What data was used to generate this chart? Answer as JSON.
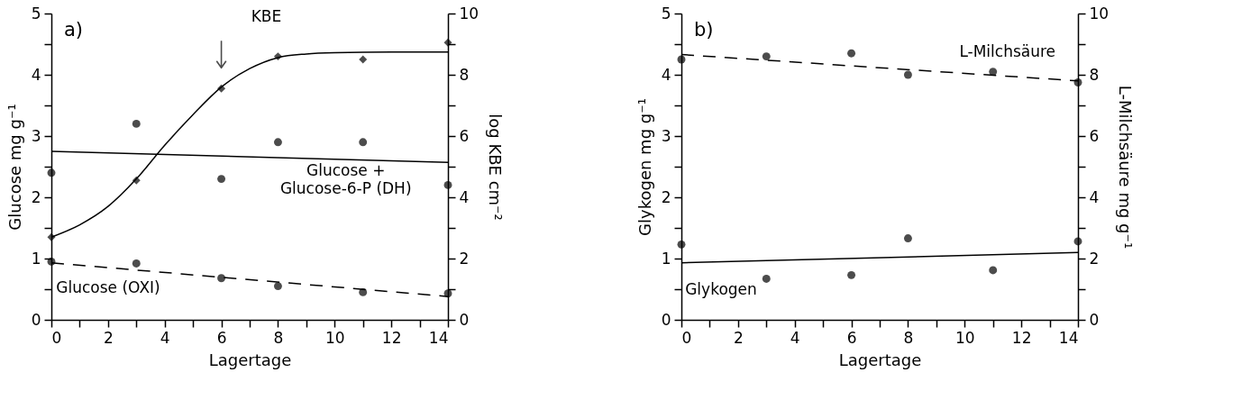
{
  "chart_data": [
    {
      "type": "scatter",
      "title": "a)",
      "xlabel": "Lagertage",
      "ylabel": "Glucose  mg  g⁻¹",
      "y2label": "log KBE  cm⁻²",
      "x": [
        0,
        3,
        6,
        8,
        11,
        14
      ],
      "xlim": [
        0,
        14
      ],
      "xticks": [
        0,
        {
          "value": 1,
          "label": null
        },
        2,
        {
          "value": 3,
          "label": null
        },
        4,
        {
          "value": 5,
          "label": null
        },
        6,
        {
          "value": 7,
          "label": null
        },
        8,
        {
          "value": 9,
          "label": null
        },
        10,
        {
          "value": 11,
          "label": null
        },
        12,
        {
          "value": 13,
          "label": null
        },
        14
      ],
      "ylim": [
        0,
        5
      ],
      "yticks": [
        0,
        {
          "value": 0.5,
          "label": null
        },
        1,
        {
          "value": 1.5,
          "label": null
        },
        2,
        {
          "value": 2.5,
          "label": null
        },
        3,
        {
          "value": 3.5,
          "label": null
        },
        4,
        {
          "value": 4.5,
          "label": null
        },
        5
      ],
      "y2lim": [
        0,
        10
      ],
      "y2ticks": [
        0,
        {
          "value": 1,
          "label": null
        },
        2,
        {
          "value": 3,
          "label": null
        },
        4,
        {
          "value": 5,
          "label": null
        },
        6,
        {
          "value": 7,
          "label": null
        },
        8,
        {
          "value": 9,
          "label": null
        },
        10
      ],
      "series": [
        {
          "type": "scatter",
          "axis": "y2",
          "name": "KBE",
          "marker": "diamond",
          "color": "#000000",
          "values": [
            2.7,
            4.55,
            7.55,
            8.6,
            8.5,
            9.05
          ]
        },
        {
          "type": "line",
          "axis": "y2",
          "marker": "none",
          "line_style": "solid",
          "color": "#000000",
          "x": [
            0,
            1,
            2,
            3,
            4,
            5,
            6,
            7,
            8,
            9,
            10,
            12,
            14
          ],
          "values": [
            2.7,
            3.1,
            3.7,
            4.6,
            5.7,
            6.7,
            7.6,
            8.2,
            8.56,
            8.68,
            8.72,
            8.74,
            8.74
          ]
        },
        {
          "type": "scatter",
          "name": "Glucose + Glucose-6-P (DH)",
          "marker": "circle",
          "color": "#000000",
          "values": [
            2.4,
            3.2,
            2.3,
            2.9,
            2.9,
            2.2
          ]
        },
        {
          "type": "line",
          "marker": "none",
          "line_style": "solid",
          "color": "#000000",
          "x": [
            0,
            14
          ],
          "values": [
            2.75,
            2.57
          ]
        },
        {
          "type": "scatter",
          "name": "Glucose (OXI)",
          "marker": "circle",
          "color": "#000000",
          "values": [
            0.95,
            0.92,
            0.68,
            0.55,
            0.45,
            0.43
          ]
        },
        {
          "type": "line",
          "marker": "none",
          "line_style": "dashed",
          "color": "#000000",
          "x": [
            0,
            14
          ],
          "values": [
            0.93,
            0.38
          ]
        }
      ]
    },
    {
      "type": "scatter",
      "title": "b)",
      "xlabel": "Lagertage",
      "ylabel": "Glykogen  mg  g⁻¹",
      "y2label": "L-Milchsäure  mg  g⁻¹",
      "x": [
        0,
        3,
        6,
        8,
        11,
        14
      ],
      "xlim": [
        0,
        14
      ],
      "xticks": [
        0,
        {
          "value": 1,
          "label": null
        },
        2,
        {
          "value": 3,
          "label": null
        },
        4,
        {
          "value": 5,
          "label": null
        },
        6,
        {
          "value": 7,
          "label": null
        },
        8,
        {
          "value": 9,
          "label": null
        },
        10,
        {
          "value": 11,
          "label": null
        },
        12,
        {
          "value": 13,
          "label": null
        },
        14
      ],
      "ylim": [
        0,
        5
      ],
      "yticks": [
        0,
        {
          "value": 0.5,
          "label": null
        },
        1,
        {
          "value": 1.5,
          "label": null
        },
        2,
        {
          "value": 2.5,
          "label": null
        },
        3,
        {
          "value": 3.5,
          "label": null
        },
        4,
        {
          "value": 4.5,
          "label": null
        },
        5
      ],
      "y2lim": [
        0,
        10
      ],
      "y2ticks": [
        0,
        {
          "value": 1,
          "label": null
        },
        2,
        {
          "value": 3,
          "label": null
        },
        4,
        {
          "value": 5,
          "label": null
        },
        6,
        {
          "value": 7,
          "label": null
        },
        8,
        {
          "value": 9,
          "label": null
        },
        10
      ],
      "series": [
        {
          "type": "scatter",
          "axis": "y2",
          "name": "L-Milchsäure",
          "marker": "circle",
          "color": "#000000",
          "values": [
            8.5,
            8.6,
            8.7,
            8.0,
            8.1,
            7.75
          ]
        },
        {
          "type": "line",
          "axis": "y2",
          "marker": "none",
          "line_style": "dashed",
          "color": "#000000",
          "x": [
            0,
            14
          ],
          "values": [
            8.66,
            7.8
          ]
        },
        {
          "type": "scatter",
          "name": "Glykogen",
          "marker": "circle",
          "color": "#000000",
          "values": [
            1.23,
            0.67,
            0.73,
            1.33,
            0.81,
            1.28
          ]
        },
        {
          "type": "line",
          "marker": "none",
          "line_style": "solid",
          "color": "#000000",
          "x": [
            0,
            14
          ],
          "values": [
            0.93,
            1.1
          ]
        }
      ]
    }
  ]
}
